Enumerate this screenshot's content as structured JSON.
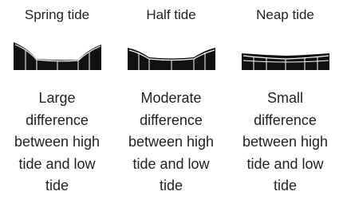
{
  "columns": [
    {
      "title": "Spring tide",
      "description": [
        "Large",
        "difference",
        "between high",
        "tide and low",
        "tide"
      ]
    },
    {
      "title": "Half tide",
      "description": [
        "Moderate",
        "difference",
        "between high",
        "tide and low",
        "tide"
      ]
    },
    {
      "title": "Neap tide",
      "description": [
        "Small",
        "difference",
        "between high",
        "tide and low",
        "tide"
      ]
    }
  ]
}
